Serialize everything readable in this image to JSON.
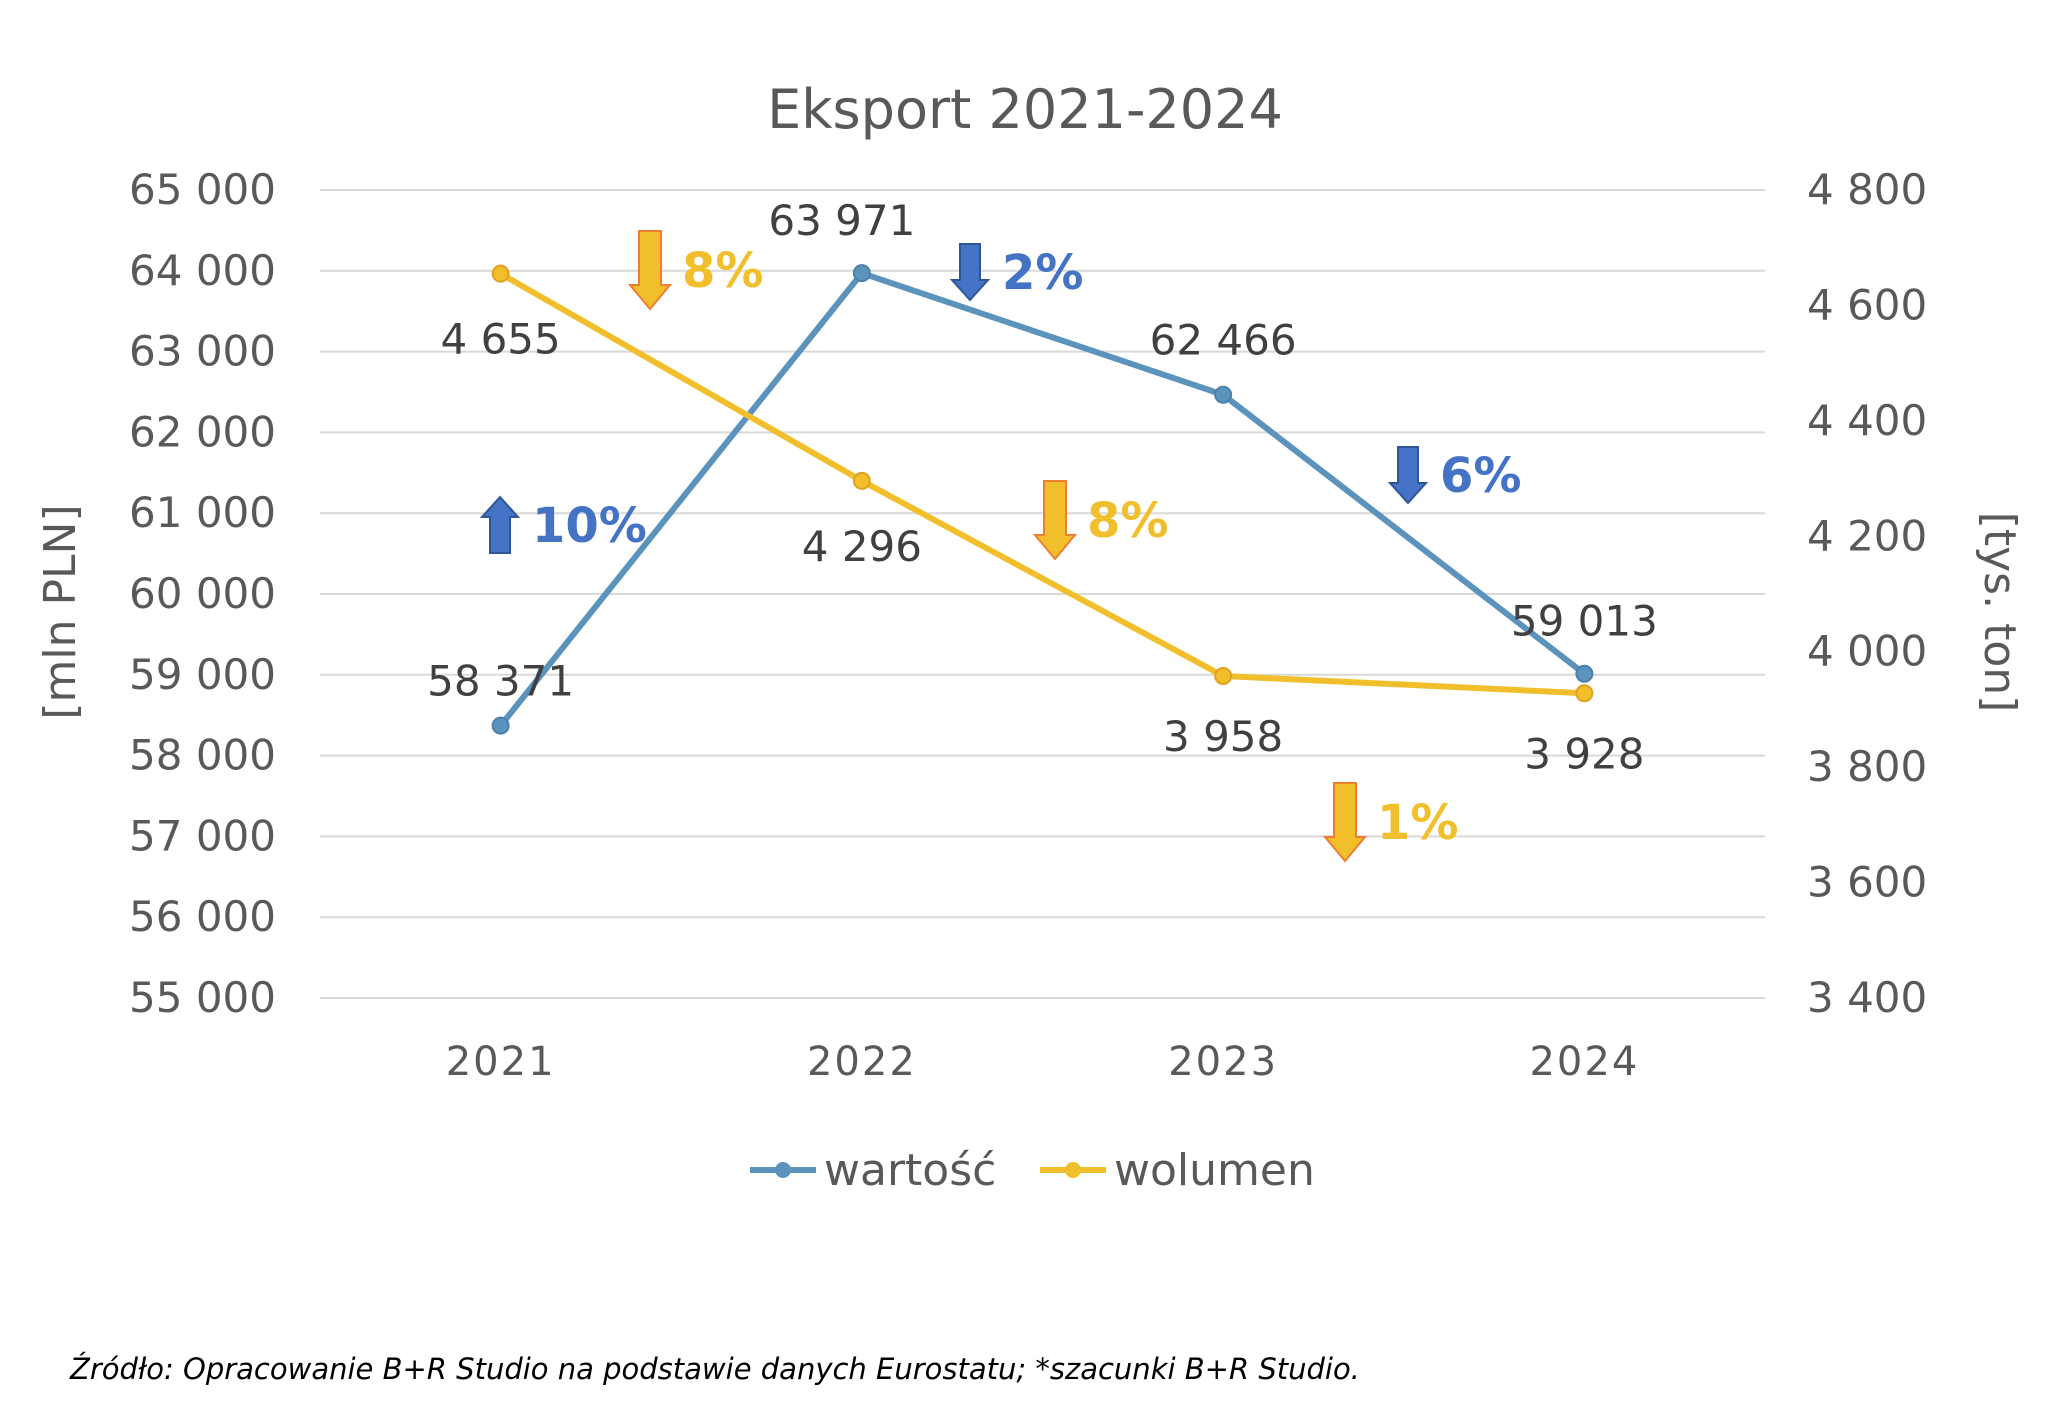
{
  "colors": {
    "value_series": "#5B93BD",
    "volume_series": "#F2BF2C",
    "gridline": "#D9D9D9",
    "arrow_blue": "#4472C4",
    "arrow_blue_dark": "#2F5597",
    "arrow_yellow": "#F2BF2C",
    "arrow_yellow_edge": "#ED7D31",
    "pct_blue": "#4472C4",
    "pct_yellow": "#F2BF2C"
  },
  "chart_data": {
    "type": "line",
    "title": "Eksport 2021-2024",
    "categories": [
      "2021",
      "2022",
      "2023",
      "2024"
    ],
    "y_left": {
      "label": "[mln PLN]",
      "range": [
        55000,
        65000
      ],
      "ticks": [
        55000,
        56000,
        57000,
        58000,
        59000,
        60000,
        61000,
        62000,
        63000,
        64000,
        65000
      ],
      "tick_labels": [
        "55 000",
        "56 000",
        "57 000",
        "58 000",
        "59 000",
        "60 000",
        "61 000",
        "62 000",
        "63 000",
        "64 000",
        "65 000"
      ]
    },
    "y_right": {
      "label": "[tys. ton]",
      "range": [
        3400,
        4800
      ],
      "ticks": [
        3400,
        3600,
        3800,
        4000,
        4200,
        4400,
        4600,
        4800
      ],
      "tick_labels": [
        "3 400",
        "3 600",
        "3 800",
        "4 000",
        "4 200",
        "4 400",
        "4 600",
        "4 800"
      ]
    },
    "series": [
      {
        "name": "wartość",
        "axis": "left",
        "values": [
          58371,
          63971,
          62466,
          59013
        ],
        "labels": [
          "58 371",
          "63 971",
          "62 466",
          "59 013"
        ]
      },
      {
        "name": "wolumen",
        "axis": "right",
        "values": [
          4655,
          4296,
          3958,
          3928
        ],
        "labels": [
          "4 655",
          "4 296",
          "3 958",
          "3 928"
        ]
      }
    ],
    "annotations": [
      {
        "text": "10%",
        "direction": "up",
        "series": "wartość",
        "between": [
          "2021",
          "2022"
        ]
      },
      {
        "text": "8%",
        "direction": "down",
        "series": "wolumen",
        "between": [
          "2021",
          "2022"
        ]
      },
      {
        "text": "2%",
        "direction": "down",
        "series": "wartość",
        "between": [
          "2022",
          "2023"
        ]
      },
      {
        "text": "8%",
        "direction": "down",
        "series": "wolumen",
        "between": [
          "2022",
          "2023"
        ]
      },
      {
        "text": "6%",
        "direction": "down",
        "series": "wartość",
        "between": [
          "2023",
          "2024"
        ]
      },
      {
        "text": "1%",
        "direction": "down",
        "series": "wolumen",
        "between": [
          "2023",
          "2024"
        ]
      }
    ],
    "grid": true,
    "legend_position": "bottom"
  },
  "source": "Źródło: Opracowanie B+R Studio na podstawie danych Eurostatu; *szacunki B+R Studio."
}
